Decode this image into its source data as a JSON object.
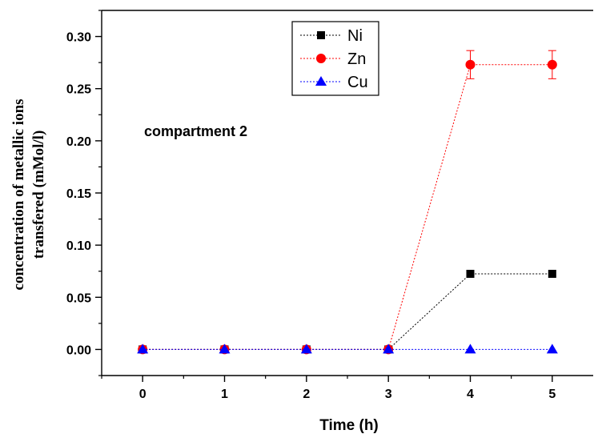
{
  "chart_data": {
    "type": "line",
    "title": "",
    "xlabel": "Time (h)",
    "ylabel_lines": [
      "concentration of metallic ions",
      "transfered (mMol/l)"
    ],
    "xlim": [
      -0.5,
      5.5
    ],
    "ylim": [
      -0.025,
      0.325
    ],
    "x_ticks": [
      0,
      1,
      2,
      3,
      4,
      5
    ],
    "x_tick_labels": [
      "0",
      "1",
      "2",
      "3",
      "4",
      "5"
    ],
    "y_ticks": [
      0.0,
      0.05,
      0.1,
      0.15,
      0.2,
      0.25,
      0.3
    ],
    "y_tick_labels": [
      "0.00",
      "0.05",
      "0.10",
      "0.15",
      "0.20",
      "0.25",
      "0.30"
    ],
    "grid": false,
    "legend_position": "top-center",
    "annotation": "compartment 2",
    "x": [
      0,
      1,
      2,
      3,
      4,
      5
    ],
    "series": [
      {
        "name": "Ni",
        "marker": "square",
        "color": "#000000",
        "line_style": "dotted",
        "values": [
          0,
          0,
          0,
          0,
          0.0725,
          0.0725
        ]
      },
      {
        "name": "Zn",
        "marker": "circle",
        "color": "#ff0000",
        "line_style": "dotted",
        "values": [
          0,
          0,
          0,
          0,
          0.273,
          0.273
        ],
        "error": [
          0,
          0,
          0,
          0,
          0.0135,
          0.0135
        ]
      },
      {
        "name": "Cu",
        "marker": "triangle",
        "color": "#0000ff",
        "line_style": "dotted",
        "values": [
          0,
          0,
          0,
          0,
          0,
          0
        ]
      }
    ]
  }
}
